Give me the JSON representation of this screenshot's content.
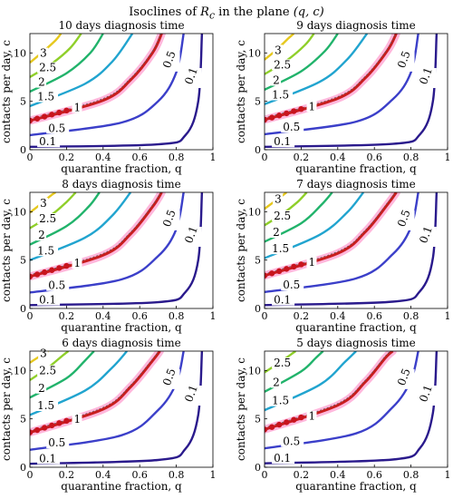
{
  "figure": {
    "title_prefix": "Isoclines of ",
    "title_symbol": "R",
    "title_subscript": "c",
    "title_middle": " in the plane ",
    "title_pair": "(q, c)"
  },
  "colors": {
    "level_0.1": "#2a1a8c",
    "level_0.5": "#3b3fc9",
    "level_1": "#c81e1e",
    "level_1.5": "#21a4cf",
    "level_2": "#21b36b",
    "level_2.5": "#8fcf2a",
    "level_3": "#e6c81e",
    "band": "#ff9fd0",
    "dot": "#c8141e"
  },
  "chart_data": [
    {
      "type": "line",
      "title": "10 days diagnosis time",
      "xlabel": "quarantine fraction, q",
      "ylabel": "contacts per day, c",
      "xlim": [
        0,
        1
      ],
      "ylim": [
        0,
        12
      ],
      "xticks": [
        "0",
        "0.2",
        "0.4",
        "0.6",
        "0.8",
        "1"
      ],
      "yticks": [
        "0",
        "5",
        "10"
      ],
      "R_threshold_c_at_q0": 3.0,
      "series": [
        {
          "name": "0.1",
          "label": "0.1",
          "values": [
            [
              0,
              0.3
            ],
            [
              0.7,
              0.55
            ],
            [
              0.85,
              1.5
            ],
            [
              0.92,
              5
            ],
            [
              0.94,
              12
            ]
          ]
        },
        {
          "name": "0.5",
          "label": "0.5",
          "values": [
            [
              0,
              1.5
            ],
            [
              0.5,
              2.8
            ],
            [
              0.7,
              5
            ],
            [
              0.8,
              8
            ],
            [
              0.84,
              12
            ]
          ]
        },
        {
          "name": "1",
          "label": "1",
          "values": [
            [
              0,
              3.0
            ],
            [
              0.4,
              5.1
            ],
            [
              0.55,
              7.2
            ],
            [
              0.67,
              10
            ],
            [
              0.72,
              12
            ]
          ]
        },
        {
          "name": "1.5",
          "label": "1.5",
          "values": [
            [
              0,
              4.5
            ],
            [
              0.3,
              6.8
            ],
            [
              0.45,
              9.1
            ],
            [
              0.56,
              12
            ]
          ]
        },
        {
          "name": "2",
          "label": "2",
          "values": [
            [
              0,
              6.0
            ],
            [
              0.2,
              7.9
            ],
            [
              0.33,
              10
            ],
            [
              0.4,
              12
            ]
          ]
        },
        {
          "name": "2.5",
          "label": "2.5",
          "values": [
            [
              0,
              7.5
            ],
            [
              0.12,
              8.9
            ],
            [
              0.22,
              10.5
            ],
            [
              0.28,
              12
            ]
          ]
        },
        {
          "name": "3",
          "label": "3",
          "values": [
            [
              0,
              9.0
            ],
            [
              0.07,
              10.1
            ],
            [
              0.14,
              11.3
            ],
            [
              0.17,
              12
            ]
          ]
        }
      ]
    },
    {
      "type": "line",
      "title": "9 days diagnosis time",
      "xlabel": "quarantine fraction, q",
      "ylabel": "contacts per day, c",
      "xlim": [
        0,
        1
      ],
      "ylim": [
        0,
        12
      ],
      "xticks": [
        "0",
        "0.2",
        "0.4",
        "0.6",
        "0.8",
        "1"
      ],
      "yticks": [
        "0",
        "5",
        "10"
      ],
      "R_threshold_c_at_q0": 3.1,
      "series": [
        {
          "name": "0.1",
          "label": "0.1",
          "values": [
            [
              0,
              0.3
            ],
            [
              0.7,
              0.6
            ],
            [
              0.85,
              1.6
            ],
            [
              0.92,
              5
            ],
            [
              0.94,
              12
            ]
          ]
        },
        {
          "name": "0.5",
          "label": "0.5",
          "values": [
            [
              0,
              1.6
            ],
            [
              0.5,
              2.9
            ],
            [
              0.7,
              5.2
            ],
            [
              0.8,
              8
            ],
            [
              0.84,
              12
            ]
          ]
        },
        {
          "name": "1",
          "label": "1",
          "values": [
            [
              0,
              3.1
            ],
            [
              0.4,
              5.3
            ],
            [
              0.55,
              7.4
            ],
            [
              0.67,
              10.2
            ],
            [
              0.72,
              12
            ]
          ]
        },
        {
          "name": "1.5",
          "label": "1.5",
          "values": [
            [
              0,
              4.7
            ],
            [
              0.3,
              7.0
            ],
            [
              0.45,
              9.3
            ],
            [
              0.56,
              12
            ]
          ]
        },
        {
          "name": "2",
          "label": "2",
          "values": [
            [
              0,
              6.2
            ],
            [
              0.2,
              8.1
            ],
            [
              0.33,
              10.2
            ],
            [
              0.4,
              12
            ]
          ]
        },
        {
          "name": "2.5",
          "label": "2.5",
          "values": [
            [
              0,
              7.8
            ],
            [
              0.12,
              9.2
            ],
            [
              0.22,
              10.8
            ],
            [
              0.27,
              12
            ]
          ]
        },
        {
          "name": "3",
          "label": "3",
          "values": [
            [
              0,
              9.3
            ],
            [
              0.07,
              10.4
            ],
            [
              0.13,
              11.5
            ],
            [
              0.16,
              12
            ]
          ]
        }
      ]
    },
    {
      "type": "line",
      "title": "8 days diagnosis time",
      "xlabel": "quarantine fraction, q",
      "ylabel": "contacts per day, c",
      "xlim": [
        0,
        1
      ],
      "ylim": [
        0,
        12
      ],
      "xticks": [
        "0",
        "0.2",
        "0.4",
        "0.6",
        "0.8",
        "1"
      ],
      "yticks": [
        "0",
        "5",
        "10"
      ],
      "R_threshold_c_at_q0": 3.3,
      "series": [
        {
          "name": "0.1",
          "label": "0.1",
          "values": [
            [
              0,
              0.35
            ],
            [
              0.7,
              0.65
            ],
            [
              0.85,
              1.7
            ],
            [
              0.92,
              5
            ],
            [
              0.94,
              12
            ]
          ]
        },
        {
          "name": "0.5",
          "label": "0.5",
          "values": [
            [
              0,
              1.65
            ],
            [
              0.5,
              3.0
            ],
            [
              0.7,
              5.4
            ],
            [
              0.8,
              8.2
            ],
            [
              0.84,
              12
            ]
          ]
        },
        {
          "name": "1",
          "label": "1",
          "values": [
            [
              0,
              3.3
            ],
            [
              0.4,
              5.5
            ],
            [
              0.55,
              7.7
            ],
            [
              0.67,
              10.5
            ],
            [
              0.72,
              12
            ]
          ]
        },
        {
          "name": "1.5",
          "label": "1.5",
          "values": [
            [
              0,
              5.0
            ],
            [
              0.3,
              7.3
            ],
            [
              0.45,
              9.6
            ],
            [
              0.55,
              12
            ]
          ]
        },
        {
          "name": "2",
          "label": "2",
          "values": [
            [
              0,
              6.6
            ],
            [
              0.2,
              8.5
            ],
            [
              0.32,
              10.5
            ],
            [
              0.38,
              12
            ]
          ]
        },
        {
          "name": "2.5",
          "label": "2.5",
          "values": [
            [
              0,
              8.3
            ],
            [
              0.12,
              9.7
            ],
            [
              0.2,
              11
            ],
            [
              0.25,
              12
            ]
          ]
        },
        {
          "name": "3",
          "label": "3",
          "values": [
            [
              0,
              9.9
            ],
            [
              0.06,
              10.8
            ],
            [
              0.11,
              11.6
            ],
            [
              0.14,
              12
            ]
          ]
        }
      ]
    },
    {
      "type": "line",
      "title": "7 days diagnosis time",
      "xlabel": "quarantine fraction, q",
      "ylabel": "contacts per day, c",
      "xlim": [
        0,
        1
      ],
      "ylim": [
        0,
        12
      ],
      "xticks": [
        "0",
        "0.2",
        "0.4",
        "0.6",
        "0.8",
        "1"
      ],
      "yticks": [
        "0",
        "5",
        "10"
      ],
      "R_threshold_c_at_q0": 3.4,
      "series": [
        {
          "name": "0.1",
          "label": "0.1",
          "values": [
            [
              0,
              0.35
            ],
            [
              0.7,
              0.7
            ],
            [
              0.85,
              1.8
            ],
            [
              0.92,
              5.2
            ],
            [
              0.94,
              12
            ]
          ]
        },
        {
          "name": "0.5",
          "label": "0.5",
          "values": [
            [
              0,
              1.7
            ],
            [
              0.5,
              3.1
            ],
            [
              0.7,
              5.6
            ],
            [
              0.8,
              8.4
            ],
            [
              0.84,
              12
            ]
          ]
        },
        {
          "name": "1",
          "label": "1",
          "values": [
            [
              0,
              3.4
            ],
            [
              0.4,
              5.7
            ],
            [
              0.55,
              7.9
            ],
            [
              0.67,
              10.7
            ],
            [
              0.72,
              12
            ]
          ]
        },
        {
          "name": "1.5",
          "label": "1.5",
          "values": [
            [
              0,
              5.2
            ],
            [
              0.3,
              7.6
            ],
            [
              0.45,
              9.9
            ],
            [
              0.54,
              12
            ]
          ]
        },
        {
          "name": "2",
          "label": "2",
          "values": [
            [
              0,
              6.9
            ],
            [
              0.2,
              8.8
            ],
            [
              0.31,
              10.7
            ],
            [
              0.37,
              12
            ]
          ]
        },
        {
          "name": "2.5",
          "label": "2.5",
          "values": [
            [
              0,
              8.6
            ],
            [
              0.1,
              9.8
            ],
            [
              0.18,
              11
            ],
            [
              0.23,
              12
            ]
          ]
        },
        {
          "name": "3",
          "label": "3",
          "values": [
            [
              0,
              10.3
            ],
            [
              0.05,
              11
            ],
            [
              0.1,
              11.7
            ],
            [
              0.12,
              12
            ]
          ]
        }
      ]
    },
    {
      "type": "line",
      "title": "6 days diagnosis time",
      "xlabel": "quarantine fraction, q",
      "ylabel": "contacts per day, c",
      "xlim": [
        0,
        1
      ],
      "ylim": [
        0,
        12
      ],
      "xticks": [
        "0",
        "0.2",
        "0.4",
        "0.6",
        "0.8",
        "1"
      ],
      "yticks": [
        "0",
        "5",
        "10"
      ],
      "R_threshold_c_at_q0": 3.6,
      "series": [
        {
          "name": "0.1",
          "label": "0.1",
          "values": [
            [
              0,
              0.36
            ],
            [
              0.7,
              0.75
            ],
            [
              0.85,
              1.9
            ],
            [
              0.92,
              5.4
            ],
            [
              0.94,
              12
            ]
          ]
        },
        {
          "name": "0.5",
          "label": "0.5",
          "values": [
            [
              0,
              1.8
            ],
            [
              0.5,
              3.3
            ],
            [
              0.7,
              5.9
            ],
            [
              0.8,
              8.7
            ],
            [
              0.84,
              12
            ]
          ]
        },
        {
          "name": "1",
          "label": "1",
          "values": [
            [
              0,
              3.6
            ],
            [
              0.4,
              6.0
            ],
            [
              0.55,
              8.3
            ],
            [
              0.67,
              11
            ],
            [
              0.71,
              12
            ]
          ]
        },
        {
          "name": "1.5",
          "label": "1.5",
          "values": [
            [
              0,
              5.4
            ],
            [
              0.3,
              7.9
            ],
            [
              0.45,
              10.3
            ],
            [
              0.53,
              12
            ]
          ]
        },
        {
          "name": "2",
          "label": "2",
          "values": [
            [
              0,
              7.2
            ],
            [
              0.2,
              9.2
            ],
            [
              0.3,
              11
            ],
            [
              0.35,
              12
            ]
          ]
        },
        {
          "name": "2.5",
          "label": "2.5",
          "values": [
            [
              0,
              9.0
            ],
            [
              0.1,
              10.3
            ],
            [
              0.17,
              11.4
            ],
            [
              0.21,
              12
            ]
          ]
        },
        {
          "name": "3",
          "label": "3",
          "values": [
            [
              0,
              10.8
            ],
            [
              0.04,
              11.3
            ],
            [
              0.08,
              11.8
            ],
            [
              0.1,
              12
            ]
          ]
        }
      ]
    },
    {
      "type": "line",
      "title": "5 days diagnosis time",
      "xlabel": "quarantine fraction, q",
      "ylabel": "contacts per day, c",
      "xlim": [
        0,
        1
      ],
      "ylim": [
        0,
        12
      ],
      "xticks": [
        "0",
        "0.2",
        "0.4",
        "0.6",
        "0.8",
        "1"
      ],
      "yticks": [
        "0",
        "5",
        "10"
      ],
      "R_threshold_c_at_q0": 3.9,
      "series": [
        {
          "name": "0.1",
          "label": "0.1",
          "values": [
            [
              0,
              0.4
            ],
            [
              0.7,
              0.8
            ],
            [
              0.85,
              2.0
            ],
            [
              0.92,
              5.6
            ],
            [
              0.94,
              12
            ]
          ]
        },
        {
          "name": "0.5",
          "label": "0.5",
          "values": [
            [
              0,
              1.95
            ],
            [
              0.5,
              3.5
            ],
            [
              0.7,
              6.2
            ],
            [
              0.8,
              9
            ],
            [
              0.84,
              12
            ]
          ]
        },
        {
          "name": "1",
          "label": "1",
          "values": [
            [
              0,
              3.9
            ],
            [
              0.4,
              6.4
            ],
            [
              0.55,
              8.8
            ],
            [
              0.66,
              11.3
            ],
            [
              0.7,
              12
            ]
          ]
        },
        {
          "name": "1.5",
          "label": "1.5",
          "values": [
            [
              0,
              5.9
            ],
            [
              0.3,
              8.5
            ],
            [
              0.44,
              10.9
            ],
            [
              0.5,
              12
            ]
          ]
        },
        {
          "name": "2",
          "label": "2",
          "values": [
            [
              0,
              7.8
            ],
            [
              0.2,
              9.9
            ],
            [
              0.28,
              11.3
            ],
            [
              0.32,
              12
            ]
          ]
        },
        {
          "name": "2.5",
          "label": "2.5",
          "values": [
            [
              0,
              9.8
            ],
            [
              0.08,
              10.8
            ],
            [
              0.14,
              11.6
            ],
            [
              0.17,
              12
            ]
          ]
        }
      ]
    }
  ]
}
